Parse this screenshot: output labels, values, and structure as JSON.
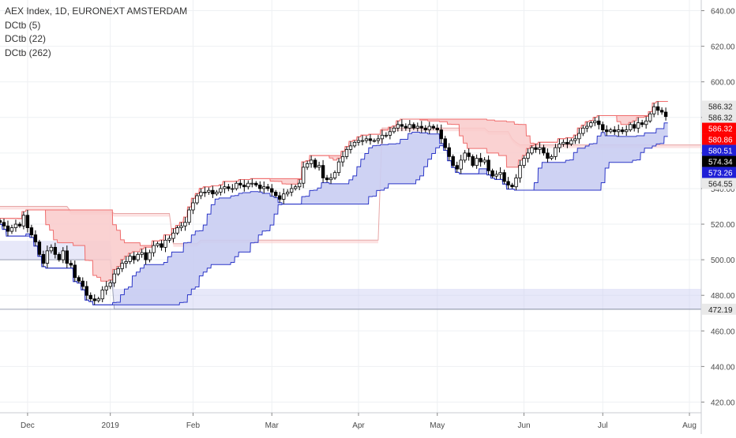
{
  "legend": {
    "title": "AEX Index, 1D, EURONEXT AMSTERDAM",
    "studies": [
      "DCtb (5)",
      "DCtb (22)",
      "DCtb (262)"
    ]
  },
  "colors": {
    "candle_up": "#ffffff",
    "candle_down": "#000000",
    "wick": "#000000",
    "upper_band_fill": "#f9caca",
    "upper_band_line": "#ef6c6c",
    "lower_band_fill": "#c9cdf2",
    "lower_band_line": "#2c37c8",
    "tag_red": "#ff0000",
    "tag_blue": "#1f1fd6",
    "tag_black": "#000000",
    "tag_grey": "#e9e9e9"
  },
  "price_tags": [
    {
      "label": "586.32",
      "value": 586.32,
      "style": "grey"
    },
    {
      "label": "586.32",
      "value": 586.32,
      "style": "grey"
    },
    {
      "label": "586.32",
      "value": 586.32,
      "style": "red"
    },
    {
      "label": "580.86",
      "value": 580.86,
      "style": "red"
    },
    {
      "label": "580.51",
      "value": 580.51,
      "style": "blue"
    },
    {
      "label": "574.34",
      "value": 574.34,
      "style": "black"
    },
    {
      "label": "573.26",
      "value": 573.26,
      "style": "blue"
    },
    {
      "label": "564.55",
      "value": 564.55,
      "style": "grey"
    },
    {
      "label": "472.19",
      "value": 472.19,
      "style": "grey"
    }
  ],
  "chart_data": {
    "type": "candlestick",
    "title": "AEX Index, 1D, EURONEXT AMSTERDAM",
    "y_axis_position": "right",
    "ylim": [
      414,
      646
    ],
    "yticks": [
      420,
      440,
      460,
      480,
      500,
      520,
      540,
      560,
      580,
      600,
      620,
      640
    ],
    "ytick_labels": [
      "420.00",
      "440.00",
      "460.00",
      "480.00",
      "500.00",
      "520.00",
      "540.00",
      "560.00",
      "580.00",
      "600.00",
      "620.00",
      "640.00"
    ],
    "x_tick_labels": [
      {
        "label": "Dec",
        "index": 15
      },
      {
        "label": "2019",
        "index": 36
      },
      {
        "label": "Feb",
        "index": 57
      },
      {
        "label": "Mar",
        "index": 77
      },
      {
        "label": "Apr",
        "index": 99
      },
      {
        "label": "May",
        "index": 119
      },
      {
        "label": "Jun",
        "index": 141
      },
      {
        "label": "Jul",
        "index": 161
      },
      {
        "label": "Aug",
        "index": 183
      }
    ],
    "x_range": [
      8,
      186
    ],
    "grid": true,
    "indicators": [
      "DCtb (5)",
      "DCtb (22)",
      "DCtb (262)"
    ],
    "long_channel": {
      "upper": [
        [
          8,
          530
        ],
        [
          25,
          530
        ],
        [
          26,
          527
        ],
        [
          36,
          527
        ],
        [
          37,
          526
        ],
        [
          51,
          526
        ],
        [
          52,
          509
        ],
        [
          58,
          509
        ],
        [
          59,
          511
        ],
        [
          104,
          511
        ],
        [
          105,
          574
        ],
        [
          131,
          574
        ],
        [
          132,
          572
        ],
        [
          137,
          572
        ],
        [
          138,
          568
        ],
        [
          139,
          566
        ],
        [
          140,
          564.55
        ],
        [
          186,
          564.55
        ]
      ],
      "lower": [
        [
          8,
          500
        ],
        [
          36,
          500
        ],
        [
          37,
          472.19
        ],
        [
          186,
          472.19
        ]
      ]
    },
    "close_series": [
      [
        8,
        521
      ],
      [
        9,
        519
      ],
      [
        10,
        516
      ],
      [
        11,
        518
      ],
      [
        12,
        520
      ],
      [
        13,
        519
      ],
      [
        14,
        525
      ],
      [
        15,
        518
      ],
      [
        16,
        514
      ],
      [
        17,
        510
      ],
      [
        18,
        503
      ],
      [
        19,
        498
      ],
      [
        20,
        505
      ],
      [
        21,
        507
      ],
      [
        22,
        503
      ],
      [
        23,
        500
      ],
      [
        24,
        505
      ],
      [
        25,
        498
      ],
      [
        26,
        497
      ],
      [
        27,
        490
      ],
      [
        28,
        488
      ],
      [
        29,
        485
      ],
      [
        30,
        480
      ],
      [
        31,
        478
      ],
      [
        32,
        477
      ],
      [
        33,
        478
      ],
      [
        34,
        483
      ],
      [
        35,
        485
      ],
      [
        36,
        487
      ],
      [
        37,
        492
      ],
      [
        38,
        495
      ],
      [
        39,
        498
      ],
      [
        40,
        499
      ],
      [
        41,
        502
      ],
      [
        42,
        500
      ],
      [
        43,
        503
      ],
      [
        44,
        504
      ],
      [
        45,
        500
      ],
      [
        46,
        504
      ],
      [
        47,
        508
      ],
      [
        48,
        509
      ],
      [
        49,
        507
      ],
      [
        50,
        511
      ],
      [
        51,
        512
      ],
      [
        52,
        515
      ],
      [
        53,
        518
      ],
      [
        54,
        519
      ],
      [
        55,
        521
      ],
      [
        56,
        528
      ],
      [
        57,
        532
      ],
      [
        58,
        536
      ],
      [
        59,
        538
      ],
      [
        60,
        538
      ],
      [
        61,
        539
      ],
      [
        62,
        537
      ],
      [
        63,
        538
      ],
      [
        64,
        540
      ],
      [
        65,
        541
      ],
      [
        66,
        540
      ],
      [
        67,
        540
      ],
      [
        68,
        543
      ],
      [
        69,
        542
      ],
      [
        70,
        541
      ],
      [
        71,
        543
      ],
      [
        72,
        543
      ],
      [
        73,
        542
      ],
      [
        74,
        540
      ],
      [
        75,
        541
      ],
      [
        76,
        540
      ],
      [
        77,
        538
      ],
      [
        78,
        536
      ],
      [
        79,
        534
      ],
      [
        80,
        537
      ],
      [
        81,
        538
      ],
      [
        82,
        540
      ],
      [
        83,
        541
      ],
      [
        84,
        543
      ],
      [
        85,
        552
      ],
      [
        86,
        554
      ],
      [
        87,
        556
      ],
      [
        88,
        552
      ],
      [
        89,
        553
      ],
      [
        90,
        546
      ],
      [
        91,
        545
      ],
      [
        92,
        546
      ],
      [
        93,
        549
      ],
      [
        94,
        555
      ],
      [
        95,
        558
      ],
      [
        96,
        562
      ],
      [
        97,
        564
      ],
      [
        98,
        566
      ],
      [
        99,
        567
      ],
      [
        100,
        567
      ],
      [
        101,
        568
      ],
      [
        102,
        567
      ],
      [
        103,
        567
      ],
      [
        104,
        568
      ],
      [
        105,
        570
      ],
      [
        106,
        570
      ],
      [
        107,
        572
      ],
      [
        108,
        574
      ],
      [
        109,
        576
      ],
      [
        110,
        575
      ],
      [
        111,
        574
      ],
      [
        112,
        576
      ],
      [
        113,
        574
      ],
      [
        114,
        575
      ],
      [
        115,
        574
      ],
      [
        116,
        573
      ],
      [
        117,
        575
      ],
      [
        118,
        574
      ],
      [
        119,
        573
      ],
      [
        120,
        568
      ],
      [
        121,
        563
      ],
      [
        122,
        558
      ],
      [
        123,
        553
      ],
      [
        124,
        551
      ],
      [
        125,
        556
      ],
      [
        126,
        560
      ],
      [
        127,
        558
      ],
      [
        128,
        553
      ],
      [
        129,
        557
      ],
      [
        130,
        555
      ],
      [
        131,
        556
      ],
      [
        132,
        550
      ],
      [
        133,
        547
      ],
      [
        134,
        548
      ],
      [
        135,
        549
      ],
      [
        136,
        544
      ],
      [
        137,
        542
      ],
      [
        138,
        541
      ],
      [
        139,
        546
      ],
      [
        140,
        553
      ],
      [
        141,
        557
      ],
      [
        142,
        560
      ],
      [
        143,
        563
      ],
      [
        144,
        562
      ],
      [
        145,
        563
      ],
      [
        146,
        560
      ],
      [
        147,
        557
      ],
      [
        148,
        558
      ],
      [
        149,
        563
      ],
      [
        150,
        565
      ],
      [
        151,
        566
      ],
      [
        152,
        565
      ],
      [
        153,
        567
      ],
      [
        154,
        568
      ],
      [
        155,
        571
      ],
      [
        156,
        574
      ],
      [
        157,
        575
      ],
      [
        158,
        577
      ],
      [
        159,
        578
      ],
      [
        160,
        576
      ],
      [
        161,
        573
      ],
      [
        162,
        572
      ],
      [
        163,
        573
      ],
      [
        164,
        572
      ],
      [
        165,
        573
      ],
      [
        166,
        572
      ],
      [
        167,
        573
      ],
      [
        168,
        576
      ],
      [
        169,
        574
      ],
      [
        170,
        577
      ],
      [
        171,
        576
      ],
      [
        172,
        578
      ],
      [
        173,
        582
      ],
      [
        174,
        586
      ],
      [
        175,
        584
      ],
      [
        176,
        583
      ],
      [
        177,
        580.5
      ]
    ]
  }
}
